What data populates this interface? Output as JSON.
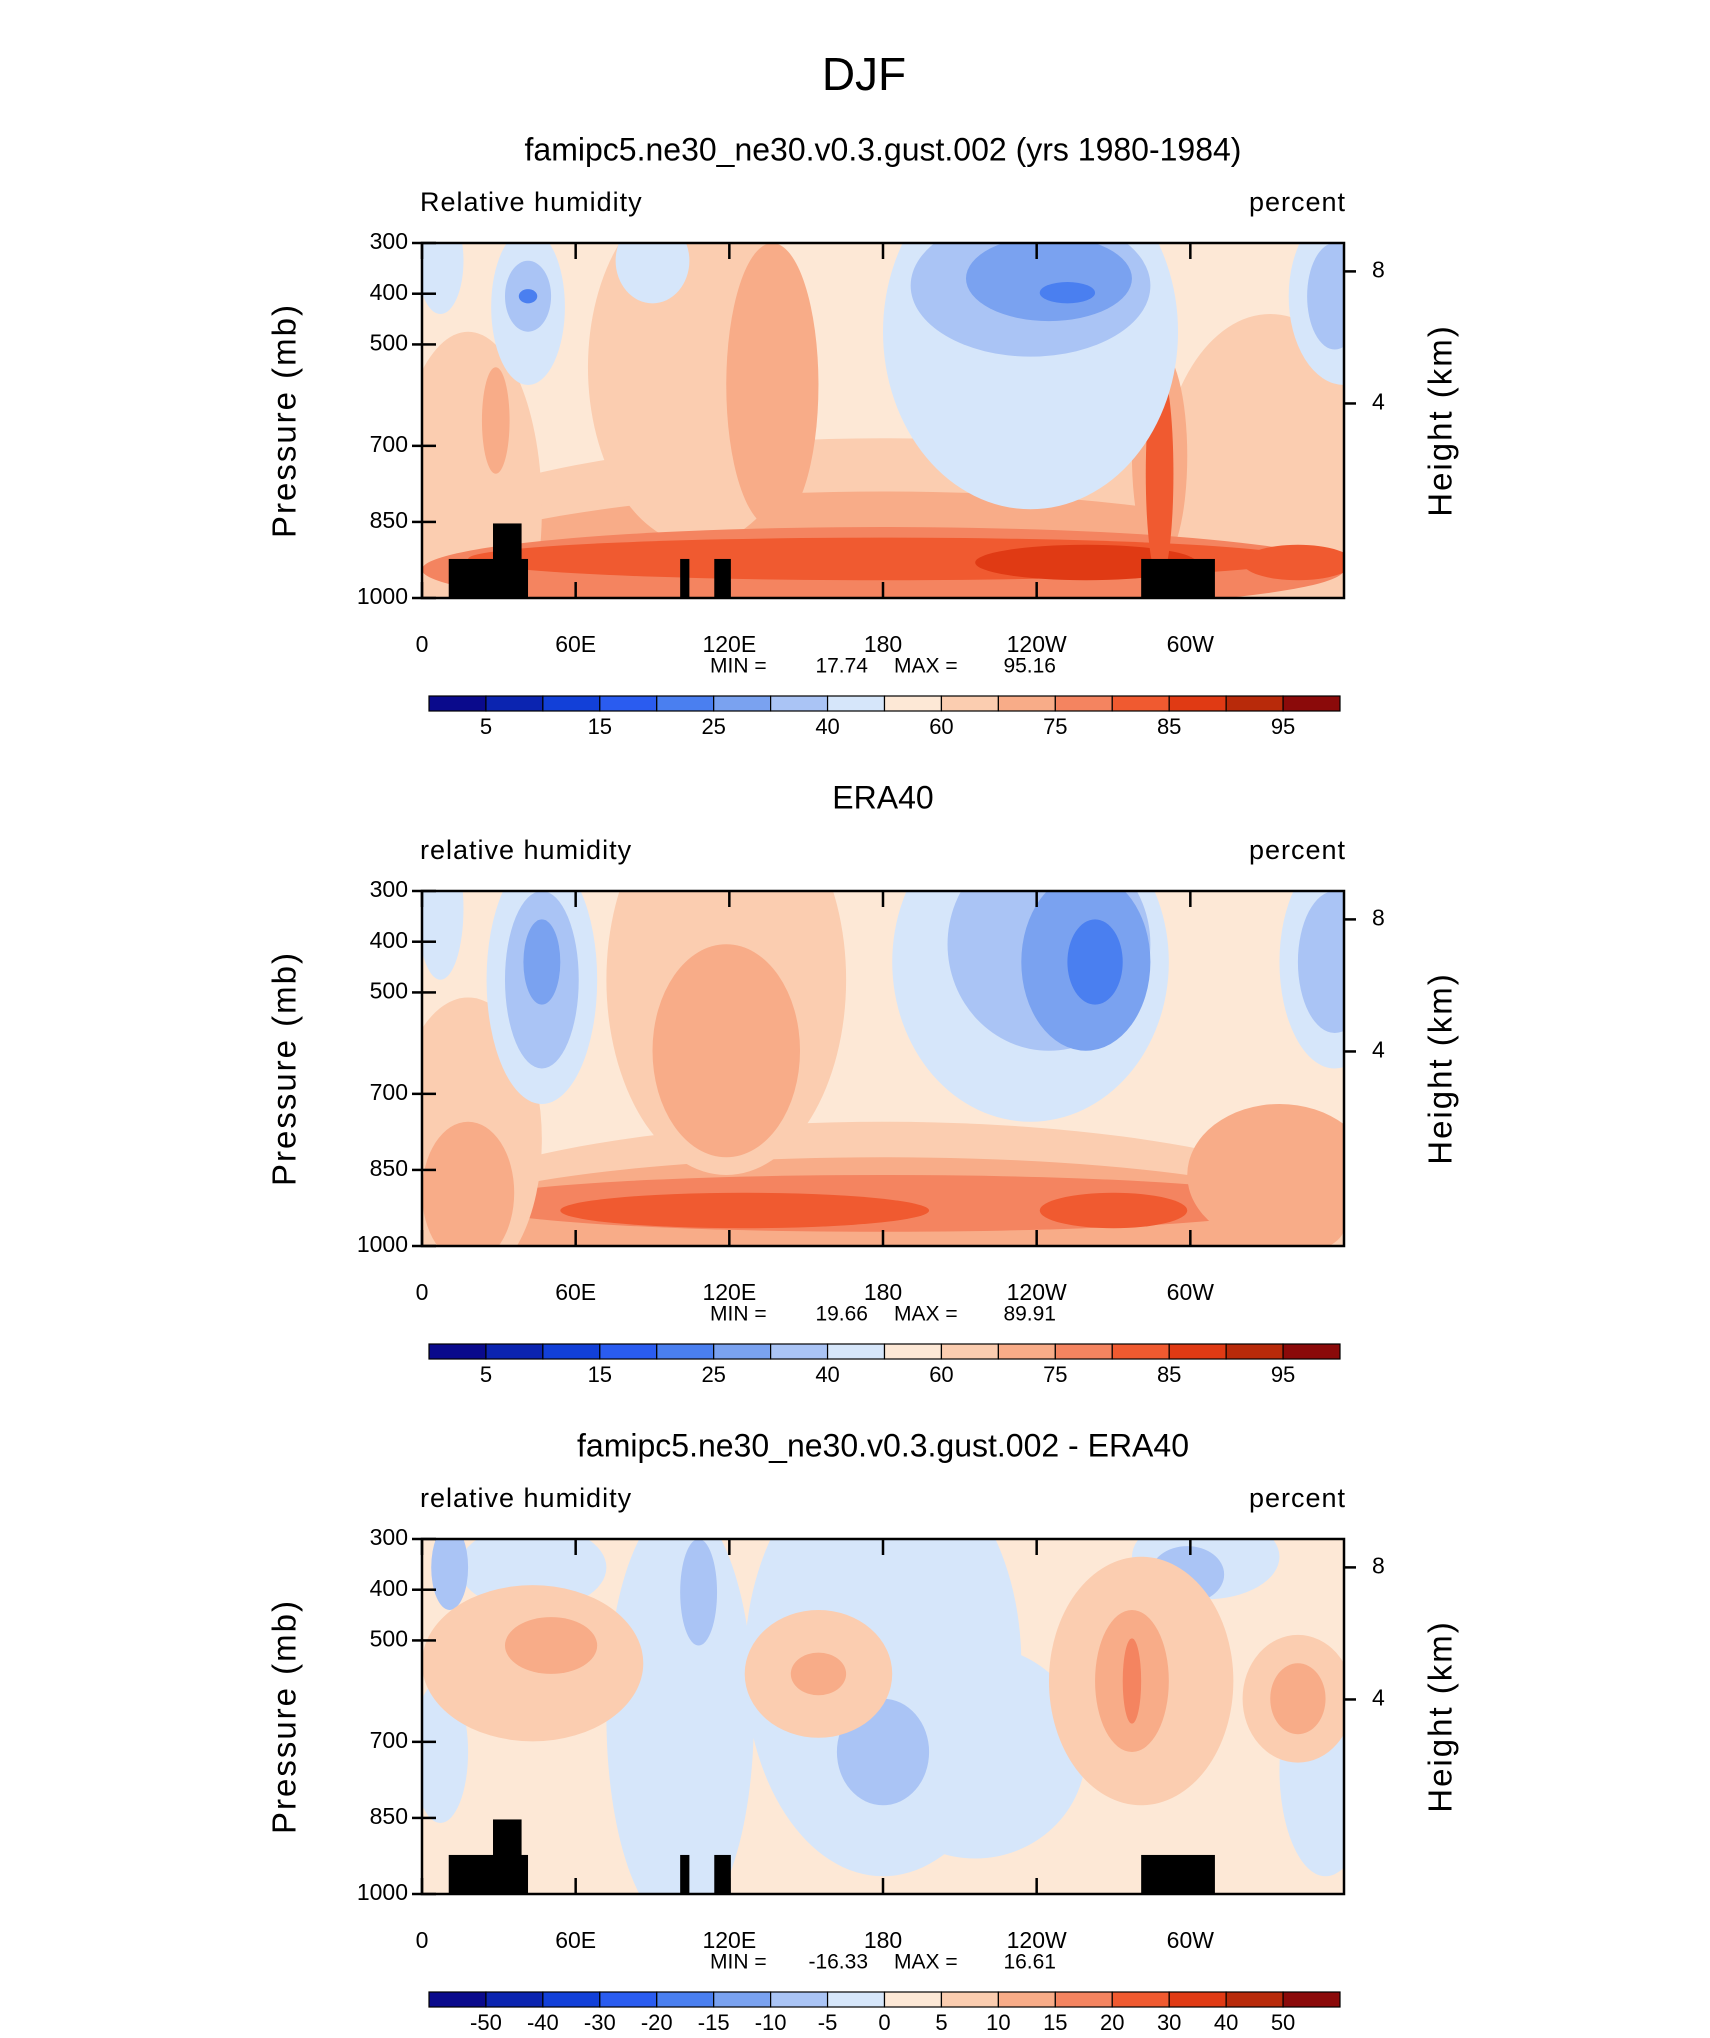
{
  "title": "DJF",
  "chart_data": [
    {
      "type": "contour",
      "title": "famipc5.ne30_ne30.v0.3.gust.002 (yrs 1980-1984)",
      "variable": "Relative humidity",
      "units": "percent",
      "ylabel": "Pressure (mb)",
      "y2label": "Height (km)",
      "xlim": [
        0,
        360
      ],
      "xticks": [
        0,
        {
          "value": 60,
          "label": "60E"
        },
        {
          "value": 120,
          "label": "120E"
        },
        180,
        {
          "value": 240,
          "label": "120W"
        },
        {
          "value": 300,
          "label": "60W"
        }
      ],
      "ylim": [
        1000,
        300
      ],
      "yticks": [
        300,
        400,
        500,
        700,
        850,
        1000
      ],
      "y2ticks": [
        8,
        4
      ],
      "min_label": "MIN =",
      "min": 17.74,
      "max_label": "MAX =",
      "max": 95.16,
      "land_mask": true,
      "colorbar": {
        "colors": [
          "#0a0a8c",
          "#0b24b0",
          "#1240d8",
          "#2a5cf0",
          "#4a7ff0",
          "#7aa2f0",
          "#aac4f5",
          "#d6e6fa",
          "#fde8d6",
          "#fbcdb0",
          "#f8ac88",
          "#f48460",
          "#f05a30",
          "#e03a14",
          "#b82a0a",
          "#8b0a0a"
        ],
        "levels": [
          5,
          null,
          15,
          null,
          25,
          null,
          40,
          null,
          60,
          null,
          75,
          null,
          85,
          null,
          95
        ]
      }
    },
    {
      "type": "contour",
      "title": "ERA40",
      "variable": "relative humidity",
      "units": "percent",
      "ylabel": "Pressure (mb)",
      "y2label": "Height (km)",
      "xlim": [
        0,
        360
      ],
      "xticks": [
        0,
        {
          "value": 60,
          "label": "60E"
        },
        {
          "value": 120,
          "label": "120E"
        },
        180,
        {
          "value": 240,
          "label": "120W"
        },
        {
          "value": 300,
          "label": "60W"
        }
      ],
      "ylim": [
        1000,
        300
      ],
      "yticks": [
        300,
        400,
        500,
        700,
        850,
        1000
      ],
      "y2ticks": [
        8,
        4
      ],
      "min_label": "MIN =",
      "min": 19.66,
      "max_label": "MAX =",
      "max": 89.91,
      "land_mask": false,
      "colorbar": {
        "colors": [
          "#0a0a8c",
          "#0b24b0",
          "#1240d8",
          "#2a5cf0",
          "#4a7ff0",
          "#7aa2f0",
          "#aac4f5",
          "#d6e6fa",
          "#fde8d6",
          "#fbcdb0",
          "#f8ac88",
          "#f48460",
          "#f05a30",
          "#e03a14",
          "#b82a0a",
          "#8b0a0a"
        ],
        "levels": [
          5,
          null,
          15,
          null,
          25,
          null,
          40,
          null,
          60,
          null,
          75,
          null,
          85,
          null,
          95
        ]
      }
    },
    {
      "type": "contour",
      "title": "famipc5.ne30_ne30.v0.3.gust.002 - ERA40",
      "variable": "relative humidity",
      "units": "percent",
      "ylabel": "Pressure (mb)",
      "y2label": "Height (km)",
      "xlim": [
        0,
        360
      ],
      "xticks": [
        0,
        {
          "value": 60,
          "label": "60E"
        },
        {
          "value": 120,
          "label": "120E"
        },
        180,
        {
          "value": 240,
          "label": "120W"
        },
        {
          "value": 300,
          "label": "60W"
        }
      ],
      "ylim": [
        1000,
        300
      ],
      "yticks": [
        300,
        400,
        500,
        700,
        850,
        1000
      ],
      "y2ticks": [
        8,
        4
      ],
      "min_label": "MIN =",
      "min": -16.33,
      "max_label": "MAX =",
      "max": 16.61,
      "land_mask": true,
      "colorbar": {
        "colors": [
          "#0a0a8c",
          "#0b24b0",
          "#1240d8",
          "#2a5cf0",
          "#4a7ff0",
          "#7aa2f0",
          "#aac4f5",
          "#d6e6fa",
          "#fde8d6",
          "#fbcdb0",
          "#f8ac88",
          "#f48460",
          "#f05a30",
          "#e03a14",
          "#b82a0a",
          "#8b0a0a"
        ],
        "levels": [
          -50,
          -40,
          -30,
          -20,
          -15,
          -10,
          -5,
          0,
          5,
          10,
          15,
          20,
          30,
          40,
          50
        ]
      }
    }
  ]
}
